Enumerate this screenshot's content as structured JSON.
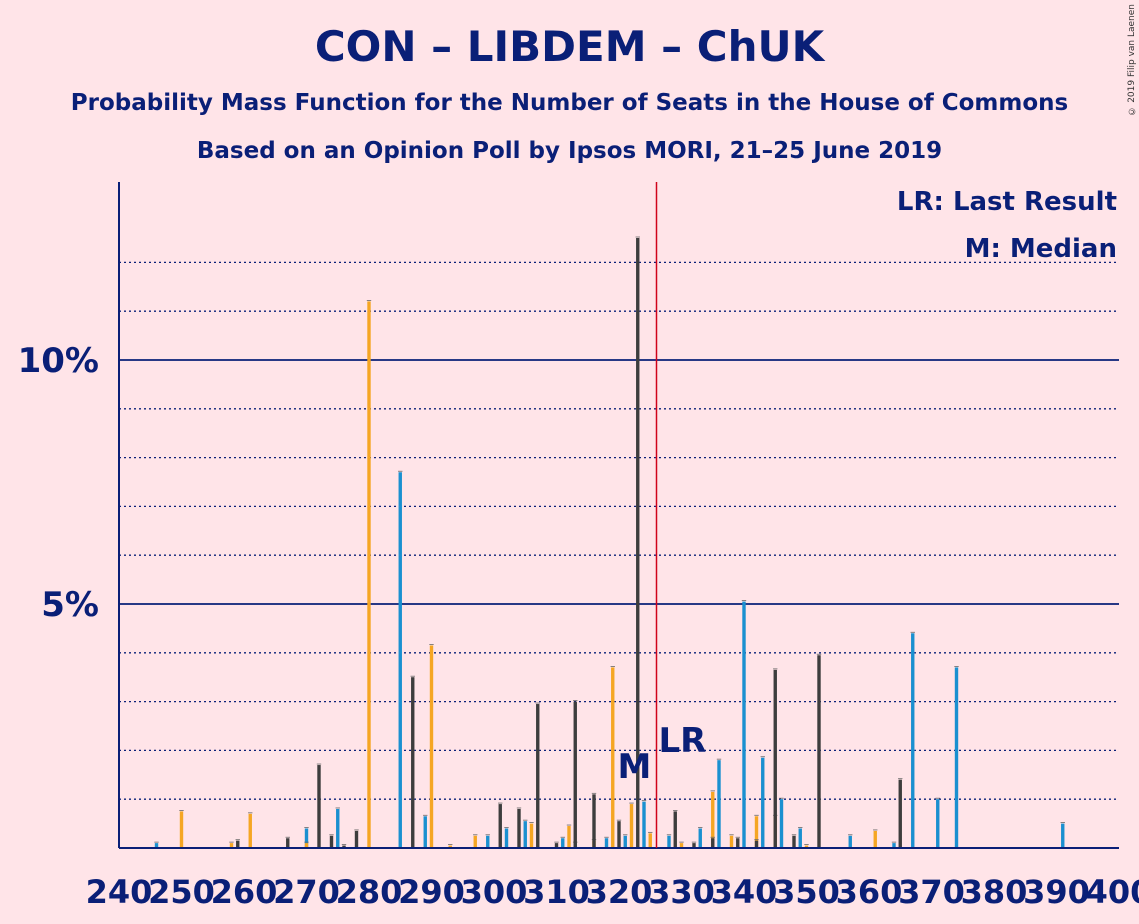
{
  "header": {
    "title": "CON – LIBDEM – ChUK",
    "subtitle1": "Probability Mass Function for the Number of Seats in the House of Commons",
    "subtitle2": "Based on an Opinion Poll by Ipsos MORI, 21–25 June 2019",
    "copyright": "© 2019 Filip van Laenen"
  },
  "legend": {
    "lr": "LR: Last Result",
    "m": "M: Median"
  },
  "colors": {
    "background": "#FFE4E8",
    "axis": "#0A1F77",
    "blue": "#1A90D0",
    "orange": "#F5A623",
    "dark": "#3D3D3D",
    "last_result_line": "#D0021B"
  },
  "chart_data": {
    "type": "bar",
    "title": "CON – LIBDEM – ChUK",
    "xlabel": "",
    "ylabel": "",
    "xlim": [
      240,
      400
    ],
    "ylim": [
      0,
      13.5
    ],
    "y_major_ticks": [
      {
        "value": 5,
        "label": "5%"
      },
      {
        "value": 10,
        "label": "10%"
      }
    ],
    "y_minor_gridlines": [
      1,
      2,
      3,
      4,
      6,
      7,
      8,
      9,
      11,
      12
    ],
    "x_tick_labels": [
      "240",
      "250",
      "260",
      "270",
      "280",
      "290",
      "300",
      "310",
      "320",
      "330",
      "340",
      "350",
      "360",
      "370",
      "380",
      "390",
      "400"
    ],
    "last_result": {
      "seat": 326,
      "label": "LR"
    },
    "median": {
      "seat": 322,
      "label": "M"
    },
    "series": [
      {
        "color_key": "blue",
        "points": [
          [
            246,
            0.1
          ],
          [
            270,
            0.4
          ],
          [
            275,
            0.8
          ],
          [
            285,
            7.7
          ],
          [
            289,
            0.65
          ],
          [
            299,
            0.25
          ],
          [
            302,
            0.4
          ],
          [
            305,
            0.55
          ],
          [
            311,
            0.2
          ],
          [
            313,
            0.1
          ],
          [
            318,
            0.2
          ],
          [
            321,
            0.25
          ],
          [
            324,
            0.95
          ],
          [
            328,
            0.25
          ],
          [
            333,
            0.4
          ],
          [
            336,
            1.8
          ],
          [
            340,
            5.05
          ],
          [
            343,
            1.85
          ],
          [
            346,
            1.0
          ],
          [
            349,
            0.4
          ],
          [
            357,
            0.25
          ],
          [
            364,
            0.1
          ],
          [
            367,
            4.4
          ],
          [
            371,
            1.0
          ],
          [
            374,
            3.7
          ],
          [
            391,
            0.5
          ]
        ]
      },
      {
        "color_key": "orange",
        "points": [
          [
            250,
            0.75
          ],
          [
            258,
            0.1
          ],
          [
            261,
            0.7
          ],
          [
            270,
            0.1
          ],
          [
            280,
            11.2
          ],
          [
            290,
            4.15
          ],
          [
            293,
            0.05
          ],
          [
            297,
            0.25
          ],
          [
            306,
            0.5
          ],
          [
            312,
            0.45
          ],
          [
            316,
            0.15
          ],
          [
            319,
            3.7
          ],
          [
            322,
            0.9
          ],
          [
            325,
            0.3
          ],
          [
            330,
            0.1
          ],
          [
            335,
            1.15
          ],
          [
            338,
            0.25
          ],
          [
            342,
            0.65
          ],
          [
            345,
            0.65
          ],
          [
            350,
            0.05
          ],
          [
            361,
            0.35
          ]
        ]
      },
      {
        "color_key": "dark",
        "points": [
          [
            259,
            0.15
          ],
          [
            267,
            0.2
          ],
          [
            272,
            1.7
          ],
          [
            276,
            0.05
          ],
          [
            274,
            0.25
          ],
          [
            278,
            0.35
          ],
          [
            287,
            3.5
          ],
          [
            301,
            0.9
          ],
          [
            304,
            0.8
          ],
          [
            307,
            2.95
          ],
          [
            310,
            0.1
          ],
          [
            313,
            3.0
          ],
          [
            316,
            1.1
          ],
          [
            320,
            0.55
          ],
          [
            323,
            12.5
          ],
          [
            329,
            0.75
          ],
          [
            332,
            0.1
          ],
          [
            335,
            0.2
          ],
          [
            339,
            0.2
          ],
          [
            342,
            0.15
          ],
          [
            345,
            3.65
          ],
          [
            348,
            0.25
          ],
          [
            352,
            3.95
          ],
          [
            365,
            1.4
          ]
        ]
      }
    ]
  }
}
